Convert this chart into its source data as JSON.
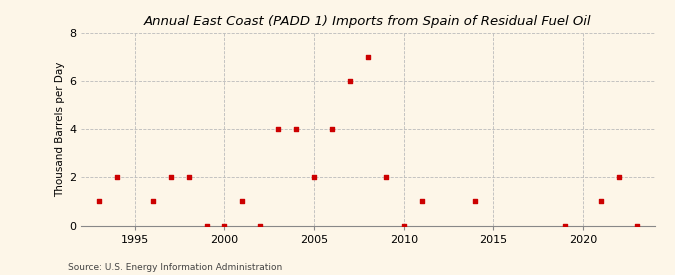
{
  "title": "Annual East Coast (PADD 1) Imports from Spain of Residual Fuel Oil",
  "ylabel": "Thousand Barrels per Day",
  "source": "Source: U.S. Energy Information Administration",
  "years": [
    1993,
    1994,
    1996,
    1997,
    1998,
    1999,
    2000,
    2001,
    2002,
    2003,
    2004,
    2005,
    2006,
    2007,
    2008,
    2009,
    2010,
    2011,
    2014,
    2019,
    2021,
    2022,
    2023
  ],
  "values": [
    1,
    2,
    1,
    2,
    2,
    0,
    0,
    1,
    0,
    4,
    4,
    2,
    4,
    6,
    7,
    2,
    0,
    1,
    1,
    0,
    1,
    2,
    0
  ],
  "background_color": "#fdf6e8",
  "marker_color": "#cc0000",
  "grid_color": "#bbbbbb",
  "ylim": [
    0,
    8
  ],
  "yticks": [
    0,
    2,
    4,
    6,
    8
  ],
  "xlim": [
    1992,
    2024
  ],
  "xticks": [
    1995,
    2000,
    2005,
    2010,
    2015,
    2020
  ],
  "title_fontsize": 9.5,
  "ylabel_fontsize": 7.5,
  "tick_labelsize": 8,
  "source_fontsize": 6.5,
  "marker_size": 10
}
